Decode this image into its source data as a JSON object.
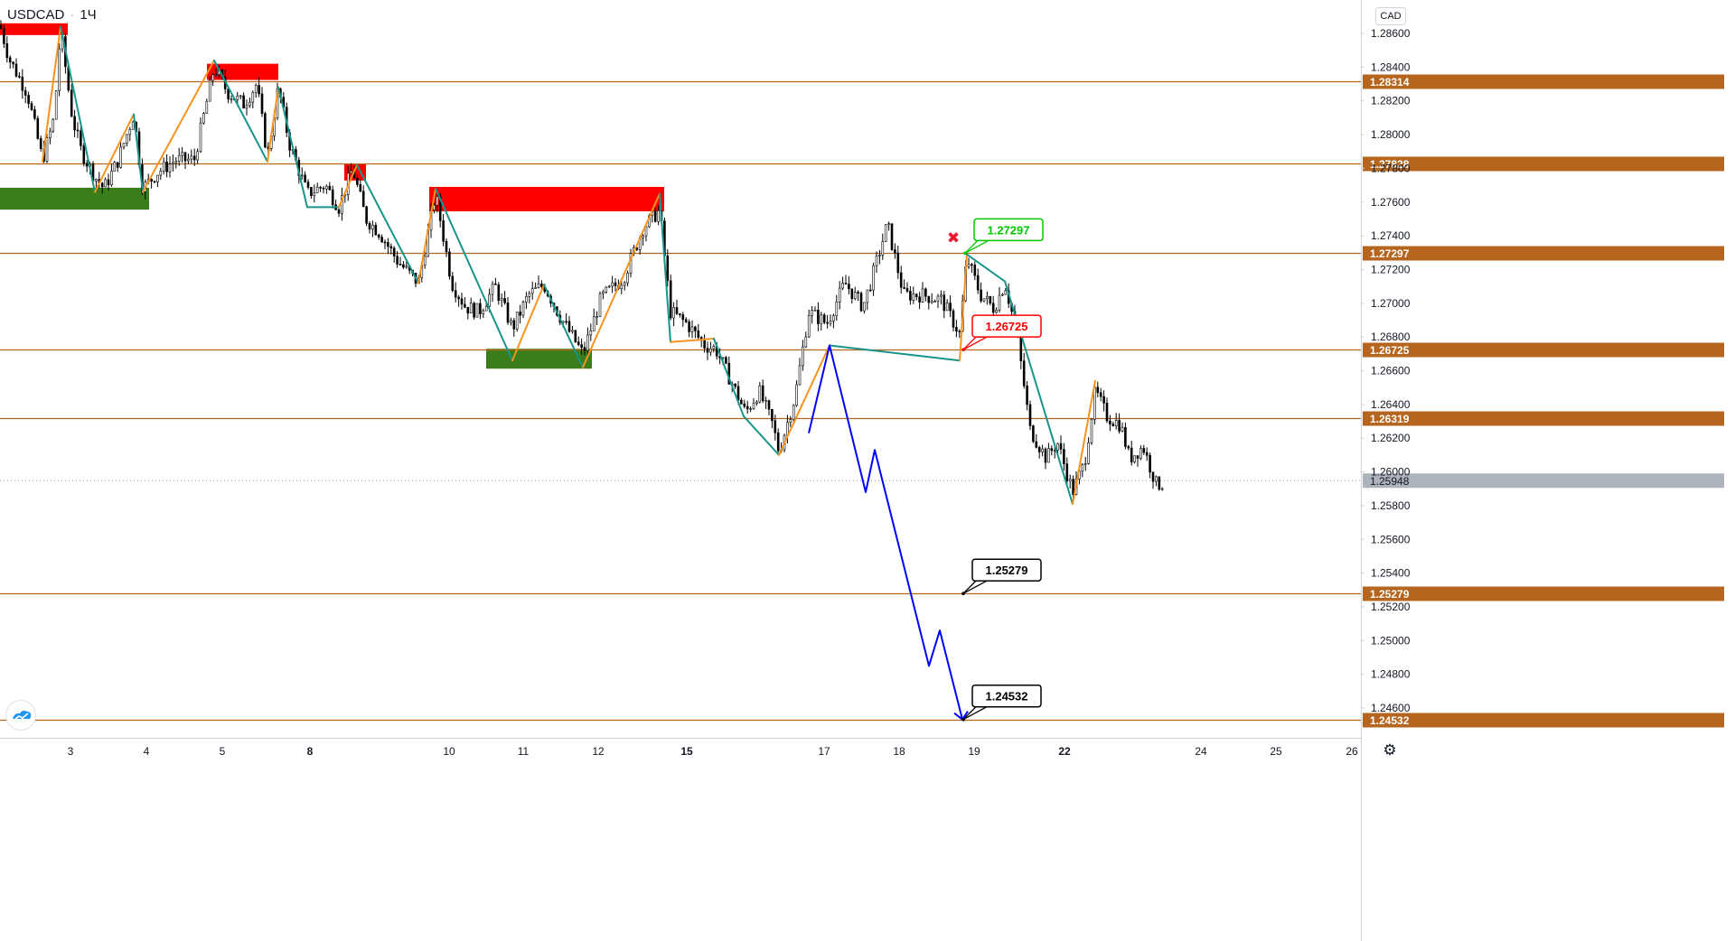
{
  "header": {
    "symbol": "USDCAD",
    "separator": "·",
    "interval": "1Ч"
  },
  "currency_badge": "CAD",
  "chart_data": {
    "type": "line",
    "y_axis": {
      "range": [
        1.2445,
        1.2872
      ],
      "ticks": [
        "1.28600",
        "1.28400",
        "1.28200",
        "1.28000",
        "1.27800",
        "1.27600",
        "1.27400",
        "1.27200",
        "1.27000",
        "1.26800",
        "1.26600",
        "1.26400",
        "1.26200",
        "1.26000",
        "1.25800",
        "1.25600",
        "1.25400",
        "1.25200",
        "1.25000",
        "1.24800",
        "1.24600"
      ],
      "tick_values": [
        1.286,
        1.284,
        1.282,
        1.28,
        1.278,
        1.276,
        1.274,
        1.272,
        1.27,
        1.268,
        1.266,
        1.264,
        1.262,
        1.26,
        1.258,
        1.256,
        1.254,
        1.252,
        1.25,
        1.248,
        1.246
      ]
    },
    "x_axis": {
      "range": [
        0,
        1500
      ],
      "labels": [
        "3",
        "4",
        "5",
        "8",
        "10",
        "11",
        "12",
        "15",
        "17",
        "18",
        "19",
        "22",
        "24",
        "25",
        "26"
      ],
      "label_positions": [
        78,
        162,
        246,
        343,
        497,
        579,
        662,
        760,
        912,
        995,
        1078,
        1178,
        1329,
        1412,
        1496
      ],
      "bold_labels": [
        "8",
        "15",
        "22"
      ]
    },
    "levels": [
      {
        "value": 1.28314,
        "label": "1.28314"
      },
      {
        "value": 1.27828,
        "label": "1.27828"
      },
      {
        "value": 1.27297,
        "label": "1.27297"
      },
      {
        "value": 1.26725,
        "label": "1.26725"
      },
      {
        "value": 1.26319,
        "label": "1.26319"
      },
      {
        "value": 1.25279,
        "label": "1.25279"
      },
      {
        "value": 1.24532,
        "label": "1.24532"
      }
    ],
    "last_price": {
      "value": 1.25948,
      "label": "1.25948"
    },
    "zones": [
      {
        "kind": "supply",
        "color": "#ff0000",
        "x0": 0,
        "x1": 75,
        "y0": 1.2859,
        "y1": 1.2866
      },
      {
        "kind": "supply",
        "color": "#ff0000",
        "x0": 229,
        "x1": 308,
        "y0": 1.28324,
        "y1": 1.2842
      },
      {
        "kind": "supply",
        "color": "#ff0000",
        "x0": 381,
        "x1": 405,
        "y0": 1.27728,
        "y1": 1.27828
      },
      {
        "kind": "supply",
        "color": "#ff0000",
        "x0": 475,
        "x1": 735,
        "y0": 1.27545,
        "y1": 1.2769
      },
      {
        "kind": "demand",
        "color": "#3a7d1a",
        "x0": 0,
        "x1": 165,
        "y0": 1.27555,
        "y1": 1.27685
      },
      {
        "kind": "demand",
        "color": "#3a7d1a",
        "x0": 538,
        "x1": 655,
        "y0": 1.26612,
        "y1": 1.2673
      }
    ],
    "price_series": {
      "x": [
        0,
        10,
        20,
        30,
        47,
        60,
        67,
        80,
        90,
        105,
        115,
        130,
        148,
        158,
        175,
        195,
        215,
        237,
        252,
        270,
        284,
        296,
        308,
        320,
        340,
        360,
        375,
        390,
        405,
        420,
        440,
        463,
        482,
        500,
        515,
        530,
        548,
        567,
        585,
        602,
        620,
        645,
        665,
        690,
        712,
        730,
        742,
        760,
        780,
        792,
        808,
        825,
        840,
        855,
        862,
        880,
        895,
        915,
        935,
        955,
        965,
        982,
        1000,
        1020,
        1042,
        1062,
        1070,
        1085,
        1100,
        1112,
        1125,
        1140,
        1158,
        1170,
        1187,
        1200,
        1212,
        1225,
        1240,
        1250,
        1265,
        1280,
        1290
      ],
      "y": [
        1.2865,
        1.2845,
        1.2835,
        1.2825,
        1.2785,
        1.281,
        1.2862,
        1.281,
        1.279,
        1.2775,
        1.2768,
        1.2784,
        1.2812,
        1.2768,
        1.2778,
        1.2785,
        1.2785,
        1.284,
        1.2825,
        1.2818,
        1.283,
        1.2787,
        1.2828,
        1.2795,
        1.2765,
        1.277,
        1.2757,
        1.278,
        1.275,
        1.2742,
        1.2725,
        1.2712,
        1.2765,
        1.2712,
        1.2698,
        1.2695,
        1.271,
        1.2685,
        1.2705,
        1.2711,
        1.2692,
        1.267,
        1.2703,
        1.2715,
        1.2745,
        1.2755,
        1.2695,
        1.2688,
        1.2675,
        1.2673,
        1.2655,
        1.2635,
        1.2648,
        1.2628,
        1.2612,
        1.2645,
        1.2695,
        1.2688,
        1.2712,
        1.2698,
        1.2715,
        1.2747,
        1.2705,
        1.2705,
        1.2702,
        1.2682,
        1.2727,
        1.2705,
        1.2697,
        1.2712,
        1.2683,
        1.2625,
        1.2608,
        1.2618,
        1.2588,
        1.2605,
        1.2648,
        1.2633,
        1.2628,
        1.2608,
        1.2615,
        1.2592,
        1.2594
      ]
    },
    "zigzag_orange": {
      "x": [
        47,
        67,
        105,
        148,
        158,
        237,
        296,
        308,
        340,
        375,
        395,
        463,
        482,
        567,
        602,
        645,
        730,
        742,
        790,
        823,
        862,
        918,
        1062,
        1070,
        1112,
        1187,
        1212
      ],
      "y": [
        1.2784,
        1.2864,
        1.2766,
        1.2812,
        1.2766,
        1.2844,
        1.2784,
        1.2828,
        1.2757,
        1.2757,
        1.2782,
        1.2712,
        1.2768,
        1.2666,
        1.2711,
        1.2662,
        1.2765,
        1.2677,
        1.2679,
        1.2633,
        1.261,
        1.2675,
        1.2666,
        1.2729,
        1.2713,
        1.2581,
        1.2654
      ]
    },
    "projection": {
      "x": [
        895,
        918,
        958,
        968,
        1028,
        1040,
        1065
      ],
      "y": [
        1.2623,
        1.2675,
        1.2588,
        1.2613,
        1.2485,
        1.2506,
        1.24532
      ]
    },
    "callouts": [
      {
        "label": "1.27297",
        "color": "#00c800",
        "x": 1068,
        "value": 1.27297
      },
      {
        "label": "1.26725",
        "color": "#ff0000",
        "x": 1066,
        "value": 1.26725
      },
      {
        "label": "1.25279",
        "color": "#000000",
        "x": 1066,
        "value": 1.25279
      },
      {
        "label": "1.24532",
        "color": "#000000",
        "x": 1066,
        "value": 1.24532
      }
    ],
    "marker": {
      "symbol": "✖",
      "color": "#e8192c",
      "x": 1055,
      "value": 1.2739
    },
    "colors": {
      "level_line": "#b5651d",
      "level_label_bg": "#b5651d",
      "zigzag_up": "#f7931e",
      "zigzag_down": "#18958a",
      "projection": "#0000ff",
      "candle": "#000000",
      "last_price_bg": "#aeb2bb"
    }
  },
  "icons": {
    "logo": "tradingview-logo-icon",
    "settings": "gear-icon"
  }
}
